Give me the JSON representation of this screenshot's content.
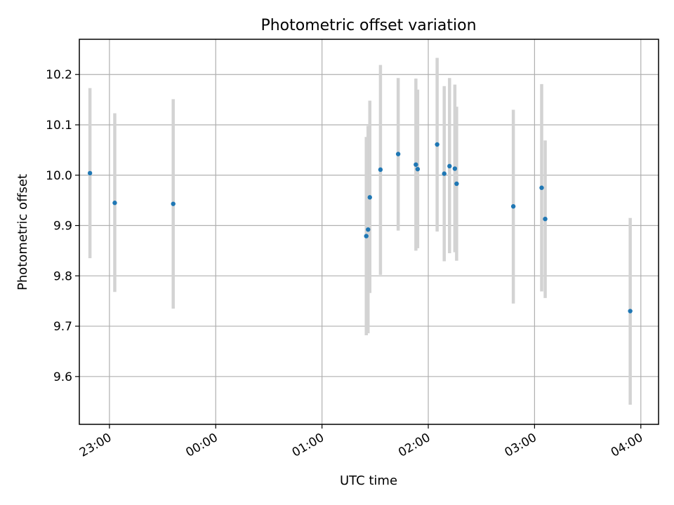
{
  "chart_data": {
    "type": "scatter",
    "title": "Photometric offset variation",
    "xlabel": "UTC time",
    "ylabel": "Photometric offset",
    "x_format": "HH:MM",
    "x_range": [
      "22:43",
      "04:10"
    ],
    "y_range": [
      9.505,
      10.27
    ],
    "x_ticks": [
      "23:00",
      "00:00",
      "01:00",
      "02:00",
      "03:00",
      "04:00"
    ],
    "y_ticks": [
      9.6,
      9.7,
      9.8,
      9.9,
      10.0,
      10.1,
      10.2
    ],
    "y_tick_labels": [
      "9.6",
      "9.7",
      "9.8",
      "9.9",
      "10.0",
      "10.1",
      "10.2"
    ],
    "grid": true,
    "series": [
      {
        "marker_color": "#1f77b4",
        "errorbar_color": "#d3d3d3",
        "points": [
          {
            "t": "22:49",
            "y": 10.004,
            "lo": 9.835,
            "hi": 10.173
          },
          {
            "t": "23:03",
            "y": 9.945,
            "lo": 9.768,
            "hi": 10.123
          },
          {
            "t": "23:36",
            "y": 9.943,
            "lo": 9.735,
            "hi": 10.151
          },
          {
            "t": "01:25",
            "y": 9.879,
            "lo": 9.682,
            "hi": 10.076
          },
          {
            "t": "01:26",
            "y": 9.892,
            "lo": 9.686,
            "hi": 10.098
          },
          {
            "t": "01:27",
            "y": 9.956,
            "lo": 9.766,
            "hi": 10.148
          },
          {
            "t": "01:33",
            "y": 10.011,
            "lo": 9.802,
            "hi": 10.219
          },
          {
            "t": "01:43",
            "y": 10.042,
            "lo": 9.89,
            "hi": 10.193
          },
          {
            "t": "01:53",
            "y": 10.021,
            "lo": 9.85,
            "hi": 10.192
          },
          {
            "t": "01:54",
            "y": 10.012,
            "lo": 9.855,
            "hi": 10.17
          },
          {
            "t": "02:05",
            "y": 10.061,
            "lo": 9.888,
            "hi": 10.233
          },
          {
            "t": "02:09",
            "y": 10.003,
            "lo": 9.829,
            "hi": 10.177
          },
          {
            "t": "02:12",
            "y": 10.018,
            "lo": 9.845,
            "hi": 10.193
          },
          {
            "t": "02:15",
            "y": 10.013,
            "lo": 9.847,
            "hi": 10.18
          },
          {
            "t": "02:16",
            "y": 9.983,
            "lo": 9.83,
            "hi": 10.136
          },
          {
            "t": "02:48",
            "y": 9.938,
            "lo": 9.745,
            "hi": 10.13
          },
          {
            "t": "03:04",
            "y": 9.975,
            "lo": 9.769,
            "hi": 10.181
          },
          {
            "t": "03:06",
            "y": 9.913,
            "lo": 9.756,
            "hi": 10.069
          },
          {
            "t": "03:54",
            "y": 9.73,
            "lo": 9.544,
            "hi": 9.915
          }
        ]
      }
    ]
  }
}
